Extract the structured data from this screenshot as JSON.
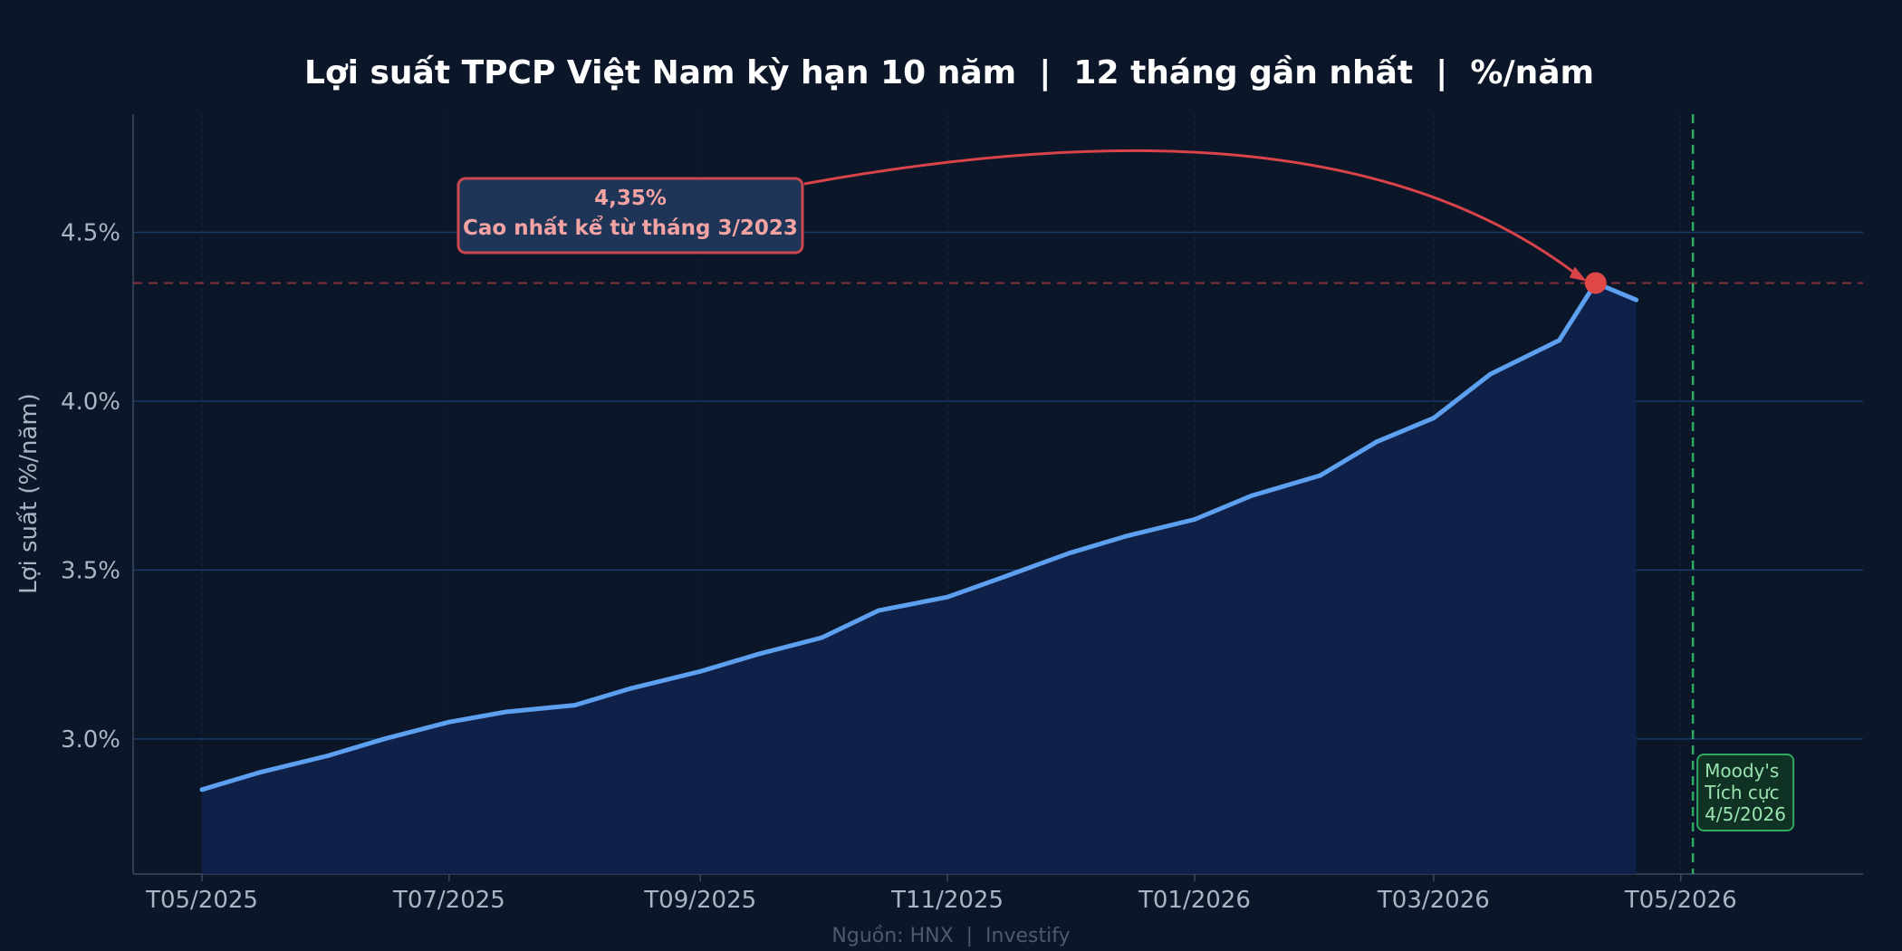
{
  "chart_data": {
    "type": "line",
    "title": "Lợi suất TPCP Việt Nam kỳ hạn 10 năm  |  12 tháng gần nhất  |  %/năm",
    "ylabel": "Lợi suất (%/năm)",
    "xlabel": "",
    "ylim": [
      2.6,
      4.85
    ],
    "xlim": [
      "2025-04-14",
      "2026-06-15"
    ],
    "y_ticks": [
      {
        "value": 3.0,
        "label": "3.0%"
      },
      {
        "value": 3.5,
        "label": "3.5%"
      },
      {
        "value": 4.0,
        "label": "4.0%"
      },
      {
        "value": 4.5,
        "label": "4.5%"
      }
    ],
    "x_ticks": [
      {
        "value": "2025-05-01",
        "label": "T05/2025"
      },
      {
        "value": "2025-07-01",
        "label": "T07/2025"
      },
      {
        "value": "2025-09-01",
        "label": "T09/2025"
      },
      {
        "value": "2025-11-01",
        "label": "T11/2025"
      },
      {
        "value": "2026-01-01",
        "label": "T01/2026"
      },
      {
        "value": "2026-03-01",
        "label": "T03/2026"
      },
      {
        "value": "2026-05-01",
        "label": "T05/2026"
      }
    ],
    "grid": true,
    "area_fill": true,
    "series": [
      {
        "x": [
          "2025-05-01",
          "2025-05-15",
          "2025-06-01",
          "2025-06-15",
          "2025-07-01",
          "2025-07-15",
          "2025-08-01",
          "2025-08-15",
          "2025-09-01",
          "2025-09-15",
          "2025-10-01",
          "2025-10-15",
          "2025-11-01",
          "2025-11-15",
          "2025-12-01",
          "2025-12-15",
          "2026-01-01",
          "2026-01-15",
          "2026-02-01",
          "2026-02-15",
          "2026-03-01",
          "2026-03-15",
          "2026-04-01",
          "2026-04-10",
          "2026-04-20"
        ],
        "values": [
          2.85,
          2.9,
          2.95,
          3.0,
          3.05,
          3.08,
          3.1,
          3.15,
          3.2,
          3.25,
          3.3,
          3.38,
          3.42,
          3.48,
          3.55,
          3.6,
          3.65,
          3.72,
          3.78,
          3.88,
          3.95,
          4.08,
          4.18,
          4.35,
          4.3
        ]
      }
    ],
    "reference_line": {
      "y": 4.35
    },
    "peak": {
      "x": "2026-04-10",
      "y": 4.35,
      "value_label": "4,35%",
      "note": "Cao nhất kể từ tháng 3/2023"
    },
    "event": {
      "x": "2026-05-04",
      "lines": [
        "Moody's",
        "Tích cực",
        "4/5/2026"
      ]
    },
    "source": "Nguồn: HNX  |  Investify",
    "colors": {
      "background": "#0b1628",
      "line": "#5ea0f0",
      "area": "#10224a",
      "grid_major": "#1a3a68",
      "grid_minor": "#14243c",
      "peak": "#e04848",
      "event": "#2fa860"
    }
  }
}
